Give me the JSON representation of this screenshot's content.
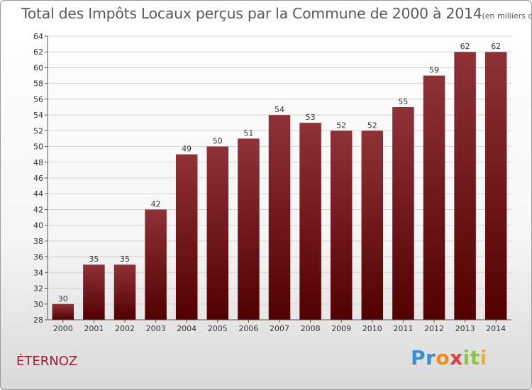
{
  "chart_data": {
    "type": "bar",
    "title": "Total des Impôts Locaux perçus par la Commune de 2000 à 2014",
    "title_unit": "(en milliers d'€)",
    "categories": [
      "2000",
      "2001",
      "2002",
      "2003",
      "2004",
      "2005",
      "2006",
      "2007",
      "2008",
      "2009",
      "2010",
      "2011",
      "2012",
      "2013",
      "2014"
    ],
    "values": [
      30,
      35,
      35,
      42,
      49,
      50,
      51,
      54,
      53,
      52,
      52,
      55,
      59,
      62,
      62
    ],
    "ylim": [
      28,
      64
    ],
    "yticks": [
      28,
      30,
      32,
      34,
      36,
      38,
      40,
      42,
      44,
      46,
      48,
      50,
      52,
      54,
      56,
      58,
      60,
      62,
      64
    ],
    "xlabel": "",
    "ylabel": "",
    "grid": true,
    "bar_color_top": "#8e3238",
    "bar_color_bottom": "#520000"
  },
  "commune": "ÉTERNOZ",
  "logo": {
    "letters": [
      "P",
      "r",
      "o",
      "x",
      "i",
      "t",
      "i"
    ],
    "colors": [
      "#3a8fd4",
      "#3a8fd4",
      "#f08c1e",
      "#e63c3c",
      "#8cc63e",
      "#8cc63e",
      "#f0b41e"
    ]
  }
}
